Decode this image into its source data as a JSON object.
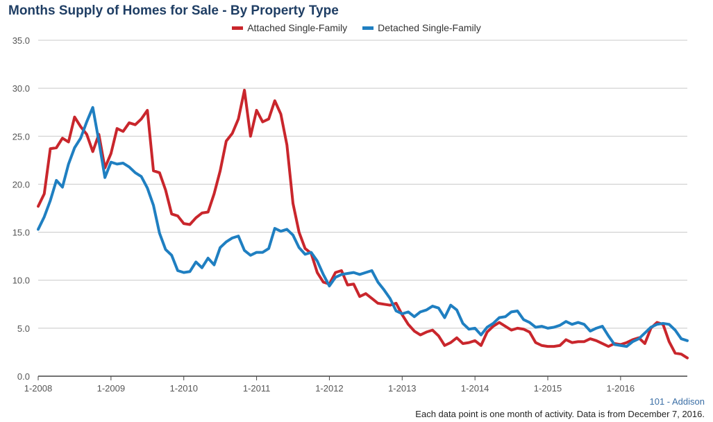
{
  "chart_data": {
    "type": "line",
    "title": "Months Supply of Homes for Sale - By Property Type",
    "xlabel": "",
    "ylabel": "",
    "ylim": [
      0,
      35
    ],
    "yticks": [
      "0.0",
      "5.0",
      "10.0",
      "15.0",
      "20.0",
      "25.0",
      "30.0",
      "35.0"
    ],
    "xticks": [
      "1-2008",
      "1-2009",
      "1-2010",
      "1-2011",
      "1-2012",
      "1-2013",
      "1-2014",
      "1-2015",
      "1-2016"
    ],
    "grid": true,
    "legend_position": "top-center",
    "series": [
      {
        "name": "Attached Single-Family",
        "color": "#c9262c",
        "values": [
          17.7,
          19.0,
          23.7,
          23.8,
          24.8,
          24.4,
          27.0,
          26.0,
          25.2,
          23.4,
          25.2,
          21.7,
          23.2,
          25.8,
          25.5,
          26.4,
          26.2,
          26.8,
          27.7,
          21.4,
          21.2,
          19.4,
          16.9,
          16.7,
          15.9,
          15.8,
          16.5,
          17.0,
          17.1,
          19.0,
          21.4,
          24.5,
          25.3,
          26.8,
          29.8,
          25.0,
          27.7,
          26.5,
          26.8,
          28.7,
          27.3,
          24.1,
          18.0,
          15.0,
          13.3,
          12.8,
          10.8,
          9.8,
          9.6,
          10.8,
          11.0,
          9.5,
          9.6,
          8.3,
          8.6,
          8.1,
          7.6,
          7.5,
          7.4,
          7.6,
          6.4,
          5.4,
          4.7,
          4.3,
          4.6,
          4.8,
          4.2,
          3.2,
          3.5,
          4.0,
          3.4,
          3.5,
          3.7,
          3.2,
          4.6,
          5.2,
          5.6,
          5.2,
          4.8,
          5.0,
          4.9,
          4.6,
          3.5,
          3.2,
          3.1,
          3.1,
          3.2,
          3.8,
          3.5,
          3.6,
          3.6,
          3.9,
          3.7,
          3.4,
          3.1,
          3.4,
          3.3,
          3.5,
          3.8,
          4.0,
          3.4,
          5.0,
          5.6,
          5.4,
          3.6,
          2.4,
          2.3,
          1.9
        ]
      },
      {
        "name": "Detached Single-Family",
        "color": "#1f7fc1",
        "values": [
          15.3,
          16.6,
          18.3,
          20.4,
          19.7,
          22.1,
          23.8,
          24.8,
          26.5,
          28.0,
          24.5,
          20.7,
          22.3,
          22.1,
          22.2,
          21.8,
          21.2,
          20.8,
          19.6,
          17.8,
          14.9,
          13.2,
          12.6,
          11.0,
          10.8,
          10.9,
          11.9,
          11.3,
          12.3,
          11.6,
          13.4,
          14.0,
          14.4,
          14.6,
          13.1,
          12.6,
          12.9,
          12.9,
          13.3,
          15.4,
          15.1,
          15.3,
          14.7,
          13.4,
          12.7,
          12.9,
          12.0,
          10.6,
          9.4,
          10.3,
          10.6,
          10.7,
          10.8,
          10.6,
          10.8,
          11.0,
          9.8,
          9.0,
          8.1,
          6.8,
          6.5,
          6.7,
          6.2,
          6.7,
          6.9,
          7.3,
          7.1,
          6.1,
          7.4,
          6.9,
          5.5,
          4.9,
          5.0,
          4.3,
          5.1,
          5.5,
          6.1,
          6.2,
          6.7,
          6.8,
          5.9,
          5.6,
          5.1,
          5.2,
          5.0,
          5.1,
          5.3,
          5.7,
          5.4,
          5.6,
          5.4,
          4.7,
          5.0,
          5.2,
          4.2,
          3.3,
          3.2,
          3.1,
          3.6,
          3.9,
          4.5,
          5.1,
          5.4,
          5.5,
          5.4,
          4.8,
          3.9,
          3.7
        ]
      }
    ]
  },
  "credit": "101 - Addison",
  "footnote": "Each data point is one month of activity. Data is from December 7, 2016."
}
